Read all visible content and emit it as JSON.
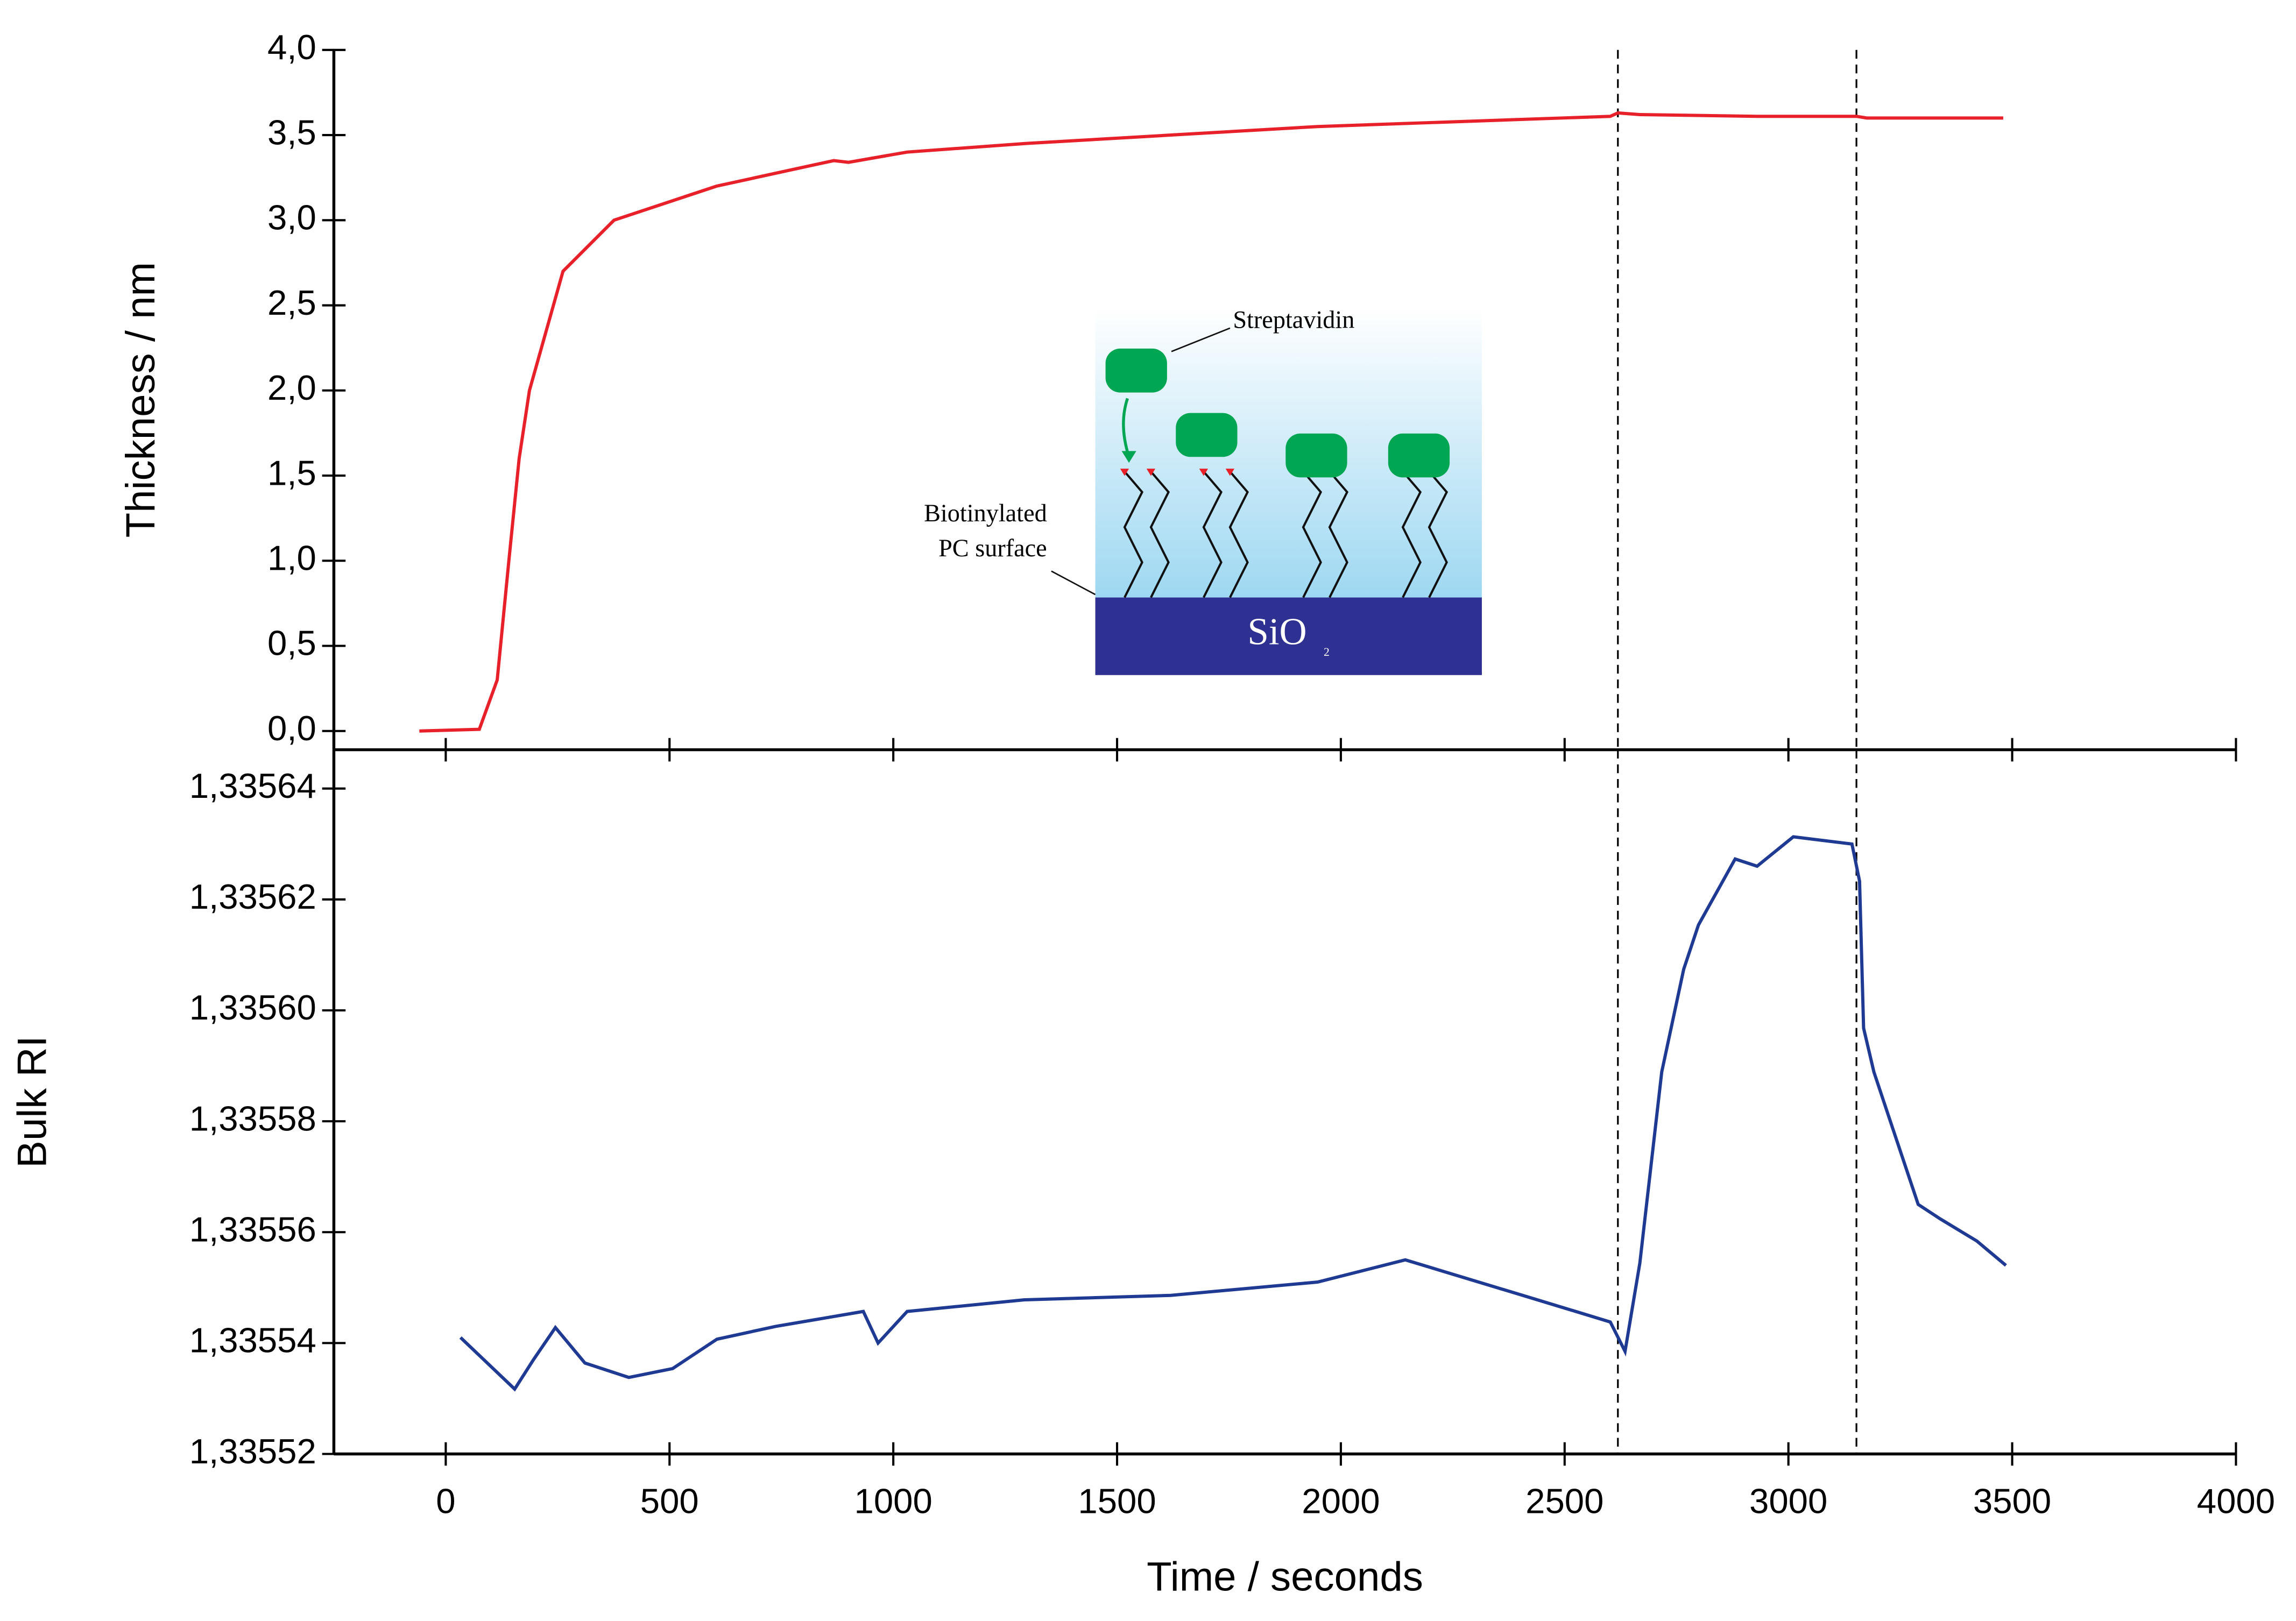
{
  "chart_data": [
    {
      "type": "line",
      "ylabel": "Thickness / nm",
      "xlim": [
        -250,
        4000
      ],
      "xticks": [
        0,
        500,
        1000,
        1500,
        2000,
        2500,
        3000,
        3500,
        4000
      ],
      "ylim": [
        -0.11,
        4.0
      ],
      "yticks": [
        {
          "value": 0,
          "label": "0,0"
        },
        {
          "value": 0.5,
          "label": "0,5"
        },
        {
          "value": 1,
          "label": "1,0"
        },
        {
          "value": 1.5,
          "label": "1,5"
        },
        {
          "value": 2,
          "label": "2,0"
        },
        {
          "value": 2.5,
          "label": "2,5"
        },
        {
          "value": 3,
          "label": "3,0"
        },
        {
          "value": 3.5,
          "label": "3,5"
        },
        {
          "value": 4,
          "label": "4,0"
        }
      ],
      "vlines": [
        2619,
        3152
      ],
      "x": [
        -59,
        75,
        115,
        141,
        164,
        187,
        262,
        376,
        605,
        867,
        900,
        1031,
        1293,
        1620,
        1948,
        2275,
        2602,
        2619,
        2668,
        2930,
        3152,
        3175,
        3480
      ],
      "series": [
        {
          "color": "#e8202a",
          "values": [
            0,
            0.01,
            0.3,
            1.0,
            1.6,
            2.0,
            2.7,
            3.0,
            3.2,
            3.35,
            3.34,
            3.4,
            3.45,
            3.5,
            3.55,
            3.58,
            3.61,
            3.63,
            3.62,
            3.61,
            3.61,
            3.6,
            3.6
          ]
        }
      ]
    },
    {
      "type": "line",
      "ylabel": "Bulk RI",
      "xlabel": "Time / seconds",
      "xlim": [
        -250,
        4000
      ],
      "xticks": [
        0,
        500,
        1000,
        1500,
        2000,
        2500,
        3000,
        3500,
        4000
      ],
      "ylim": [
        1.33552,
        1.335647
      ],
      "yticks": [
        {
          "value": 1.33552,
          "label": "1,33552"
        },
        {
          "value": 1.33554,
          "label": "1,33554"
        },
        {
          "value": 1.33556,
          "label": "1,33556"
        },
        {
          "value": 1.33558,
          "label": "1,33558"
        },
        {
          "value": 1.3356,
          "label": "1,33560"
        },
        {
          "value": 1.33562,
          "label": "1,33562"
        },
        {
          "value": 1.33564,
          "label": "1,33564"
        }
      ],
      "vlines": [
        2619,
        3152
      ],
      "x": [
        33,
        154,
        196,
        245,
        311,
        409,
        507,
        606,
        737,
        933,
        966,
        1031,
        1293,
        1620,
        1948,
        2144,
        2439,
        2602,
        2635,
        2668,
        2717,
        2766,
        2799,
        2881,
        2930,
        3011,
        3142,
        3159,
        3168,
        3191,
        3224,
        3290,
        3339,
        3421,
        3486
      ],
      "series": [
        {
          "color": "#1f3a93",
          "values": [
            1.335541,
            1.3355317,
            1.335537,
            1.3355428,
            1.3355364,
            1.3355338,
            1.3355354,
            1.3355407,
            1.335543,
            1.3355457,
            1.33554,
            1.3355457,
            1.3355478,
            1.3355486,
            1.335551,
            1.335555,
            1.3355478,
            1.3355438,
            1.3355385,
            1.3355544,
            1.3355889,
            1.3356074,
            1.3356154,
            1.3356273,
            1.335626,
            1.3356313,
            1.33563,
            1.3356233,
            1.3355968,
            1.3355889,
            1.3355809,
            1.335565,
            1.3355624,
            1.3355584,
            1.335554
          ]
        }
      ]
    }
  ],
  "inset": {
    "protein": "Streptavidin",
    "surface_line1": "Biotinylated",
    "surface_line2": "PC surface",
    "substrate": "SiO",
    "substrate_sub": "2"
  }
}
